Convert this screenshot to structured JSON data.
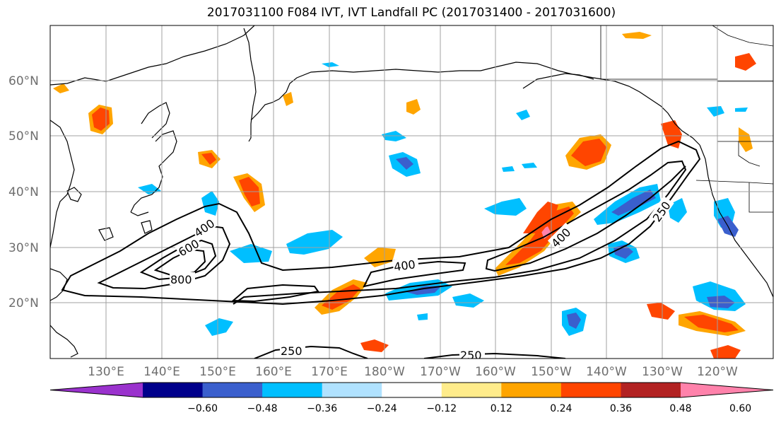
{
  "title": "2017031100 F084 IVT, IVT Landfall PC (2017031400 - 2017031600)",
  "lat_labels": [
    "60°N",
    "50°N",
    "40°N",
    "30°N",
    "20°N"
  ],
  "lon_labels": [
    "130°E",
    "140°E",
    "150°E",
    "160°E",
    "170°E",
    "180°W",
    "170°W",
    "160°W",
    "150°W",
    "140°W",
    "130°W",
    "120°W"
  ],
  "colorbar": {
    "tick_labels": [
      "−0.60",
      "−0.48",
      "−0.36",
      "−0.24",
      "−0.12",
      "0.12",
      "0.24",
      "0.36",
      "0.48",
      "0.60"
    ],
    "colors": [
      "#9a32cd",
      "#00008b",
      "#3a5fcd",
      "#00bfff",
      "#b0e2ff",
      "#ffffff",
      "#ffec8b",
      "#ffa500",
      "#ff4500",
      "#b22222",
      "#ff82ab"
    ]
  },
  "contour_labels": [
    "400",
    "600",
    "800",
    "400",
    "400",
    "250",
    "250",
    "250"
  ],
  "colors": {
    "grid": "#a0a0a0",
    "coast": "#000000",
    "contour": "#000000"
  }
}
